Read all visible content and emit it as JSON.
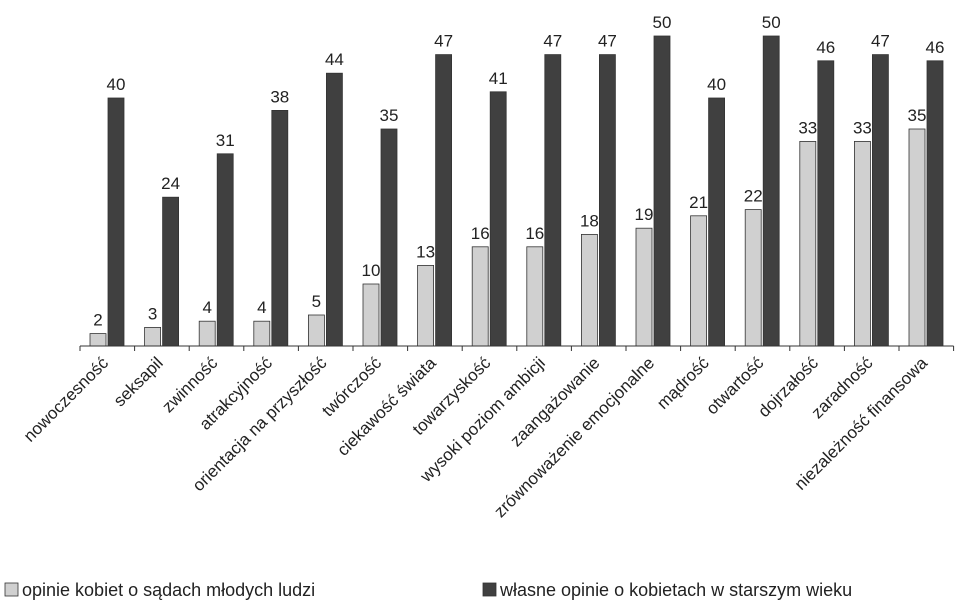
{
  "chart_data": {
    "type": "bar",
    "categories": [
      "nowoczesność",
      "seksapil",
      "zwinność",
      "atrakcyjność",
      "orientacja na przyszłość",
      "twórczość",
      "ciekawość świata",
      "towarzyskość",
      "wysoki poziom ambicji",
      "zaangażowanie",
      "zrównoważenie emocjonalne",
      "mądrość",
      "otwartość",
      "dojrzałość",
      "zaradność",
      "niezależność finansowa"
    ],
    "series": [
      {
        "name": "opinie kobiet o sądach młodych ludzi",
        "color": "#d0d0d0",
        "values": [
          2,
          3,
          4,
          4,
          5,
          10,
          13,
          16,
          16,
          18,
          19,
          21,
          22,
          33,
          33,
          35
        ]
      },
      {
        "name": "własne opinie o kobietach w starszym wieku",
        "color": "#404040",
        "values": [
          40,
          24,
          31,
          38,
          44,
          35,
          47,
          41,
          47,
          47,
          50,
          40,
          50,
          46,
          47,
          46
        ]
      }
    ],
    "legend": "bottom"
  }
}
